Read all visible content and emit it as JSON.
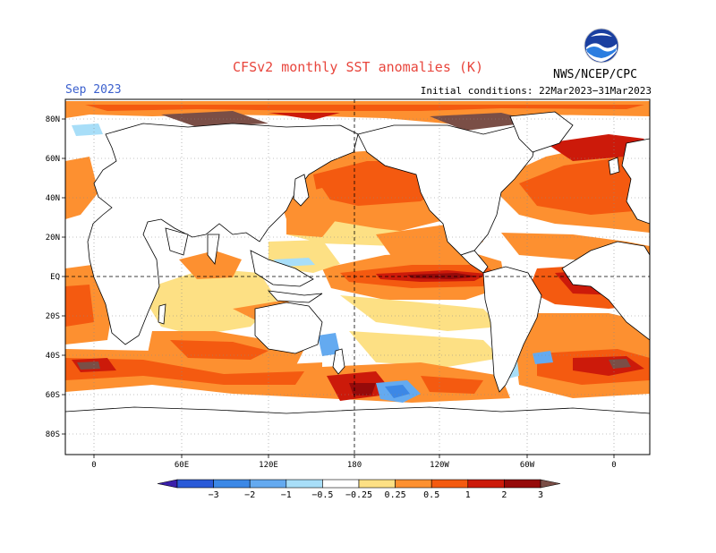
{
  "header": {
    "title": "CFSv2 monthly SST anomalies (K)",
    "month": "Sep 2023",
    "initial_conditions": "Initial conditions: 22Mar2023−31Mar2023",
    "organization": "NWS/NCEP/CPC",
    "logo_icon": "noaa-logo-icon"
  },
  "axes": {
    "lat_labels": [
      "80N",
      "60N",
      "40N",
      "20N",
      "EQ",
      "20S",
      "40S",
      "60S",
      "80S"
    ],
    "lon_labels": [
      "0",
      "60E",
      "120E",
      "180",
      "120W",
      "60W",
      "0"
    ]
  },
  "colorbar": {
    "labels": [
      "−3",
      "−2",
      "−1",
      "−0.5",
      "−0.25",
      "0.25",
      "0.5",
      "1",
      "2",
      "3"
    ],
    "colors": [
      "#3a1faa",
      "#2a5ad8",
      "#3c88e6",
      "#64aaf0",
      "#a8def8",
      "#ffffff",
      "#fde084",
      "#fd9030",
      "#f45a10",
      "#cc1a0a",
      "#960a0a",
      "#7a4e46"
    ]
  },
  "colors": {
    "land": "#ffffff",
    "ocean_weak": "#ffffff",
    "warm_light": "#fde084",
    "warm_orange": "#fd9030",
    "warm_dark": "#f45a10",
    "hot_red": "#cc1a0a",
    "hot_darkred": "#960a0a",
    "extreme_brown": "#7a4e46",
    "cool_light": "#a8def8",
    "cool_blue": "#64aaf0",
    "title_red": "#e8453c",
    "month_blue": "#3a5fcd"
  }
}
